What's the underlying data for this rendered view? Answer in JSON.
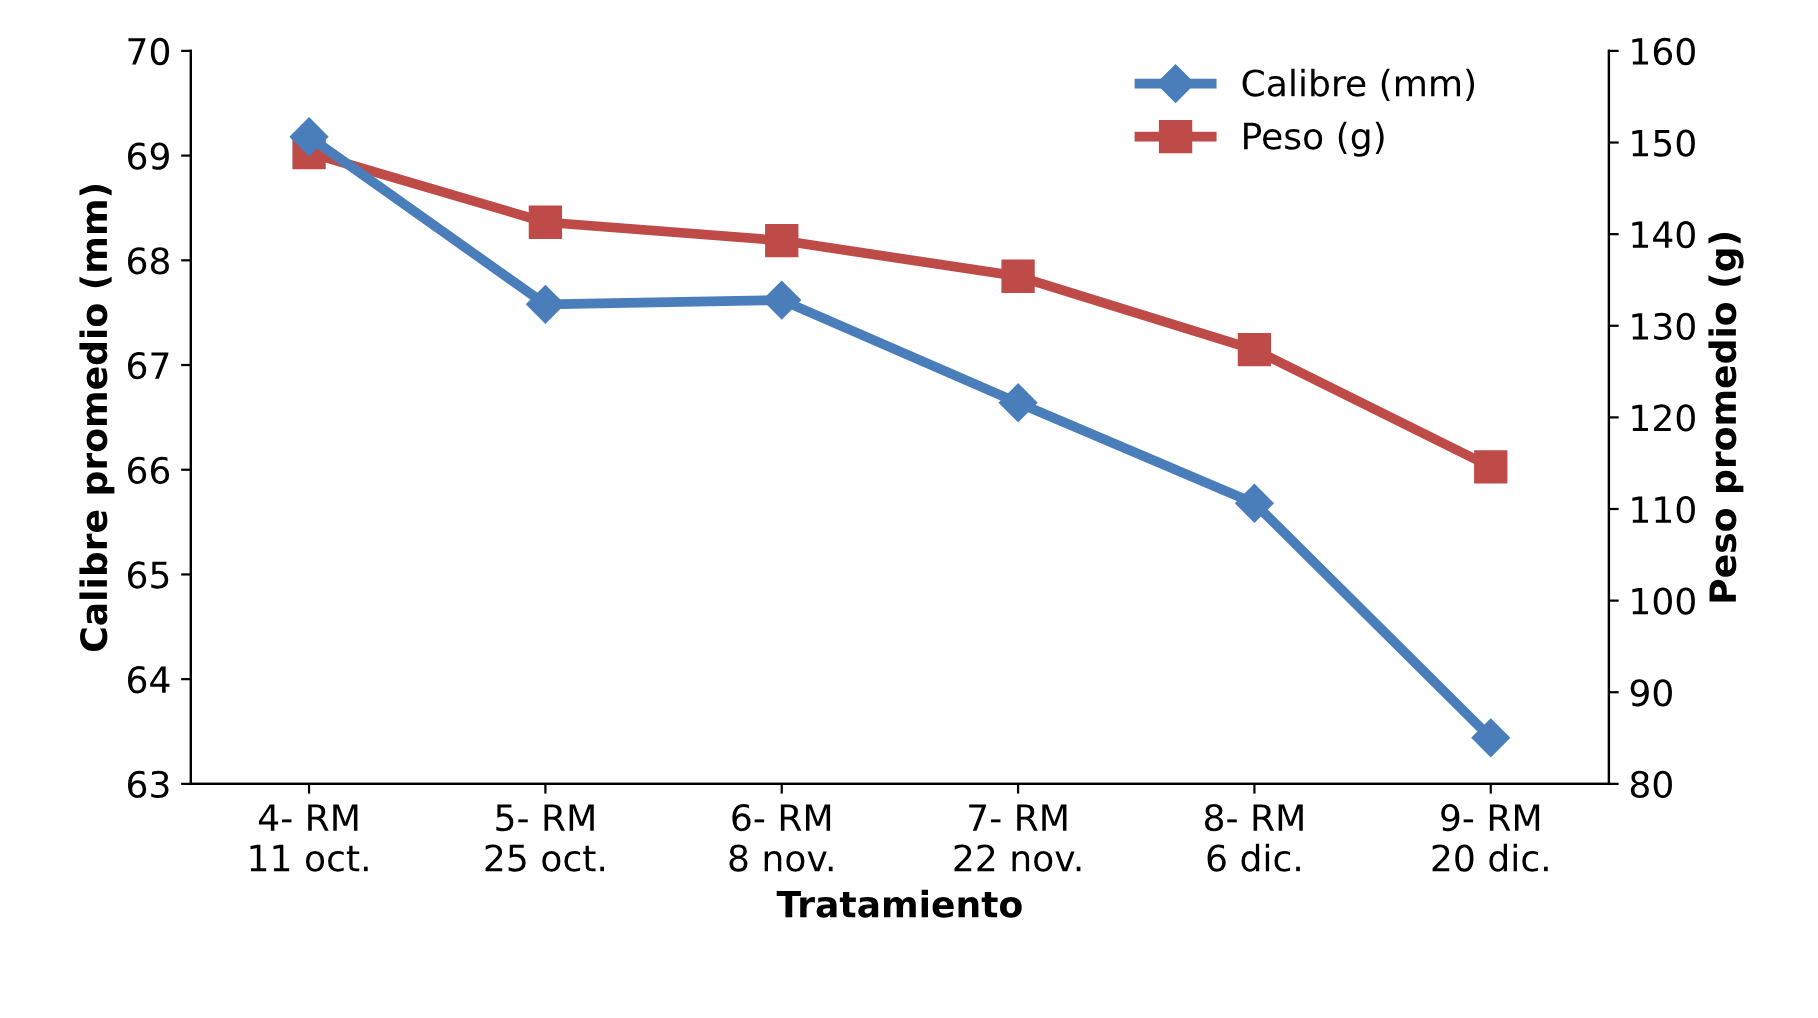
{
  "chart_data": {
    "type": "line",
    "categories": [
      "4- RM\n11 oct.",
      "5- RM\n25 oct.",
      "6- RM\n8 nov.",
      "7- RM\n22 nov.",
      "8- RM\n6 dic.",
      "9- RM\n20 dic."
    ],
    "series": [
      {
        "name": "Calibre (mm)",
        "color": "#4a7ebb",
        "marker": "diamond",
        "values": [
          69.18,
          67.58,
          67.62,
          66.64,
          65.68,
          63.44
        ]
      },
      {
        "name": "Peso (g)",
        "color": "#be4b48",
        "marker": "square",
        "axis": "y2",
        "values": [
          148.9,
          141.3,
          139.3,
          135.4,
          127.4,
          114.6
        ]
      }
    ],
    "xlabel": "Tratamiento",
    "ylabel": "Calibre promedio (mm)",
    "y2label": "Peso promedio (g)",
    "ylim": [
      63,
      70
    ],
    "yticks": [
      63,
      64,
      65,
      66,
      67,
      68,
      69,
      70
    ],
    "y2lim": [
      80,
      160
    ],
    "y2ticks": [
      80,
      90,
      100,
      110,
      120,
      130,
      140,
      150,
      160
    ],
    "grid": false,
    "legend": "top right",
    "line_style": "solid"
  }
}
